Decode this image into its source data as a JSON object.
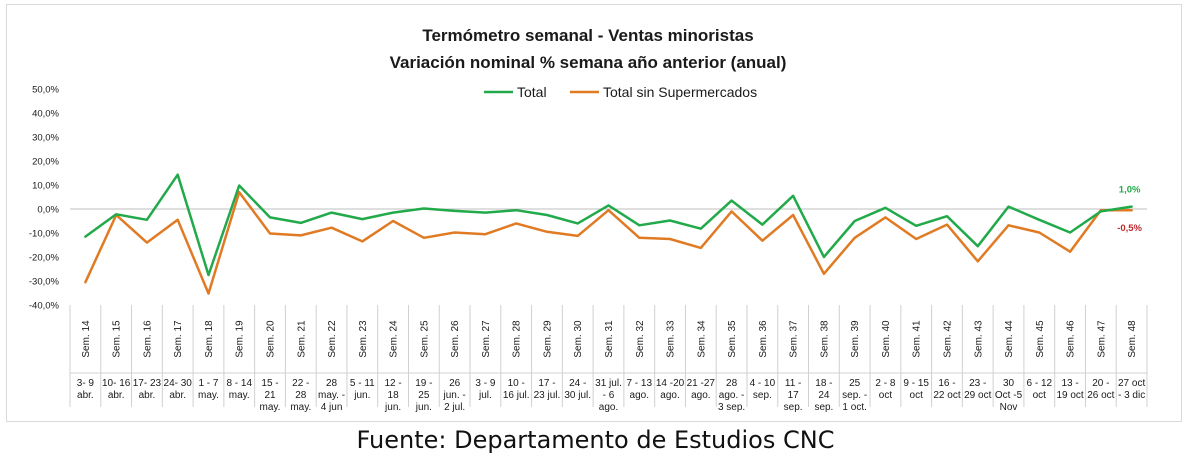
{
  "chart_data": {
    "type": "line",
    "title": "Termómetro semanal - Ventas minoristas",
    "subtitle": "Variación nominal % semana año anterior (anual)",
    "ylim": [
      -40,
      50
    ],
    "yticks": [
      "50,0%",
      "40,0%",
      "30,0%",
      "20,0%",
      "10,0%",
      "0,0%",
      "-10,0%",
      "-20,0%",
      "-30,0%",
      "-40,0%"
    ],
    "ytick_values": [
      50,
      40,
      30,
      20,
      10,
      0,
      -10,
      -20,
      -30,
      -40
    ],
    "legend_position": "top",
    "grid": false,
    "weeks": [
      "Sem. 14",
      "Sem. 15",
      "Sem. 16",
      "Sem. 17",
      "Sem. 18",
      "Sem. 19",
      "Sem. 20",
      "Sem. 21",
      "Sem. 22",
      "Sem. 23",
      "Sem. 24",
      "Sem. 25",
      "Sem. 26",
      "Sem. 27",
      "Sem. 28",
      "Sem. 29",
      "Sem. 30",
      "Sem. 31",
      "Sem. 32",
      "Sem. 33",
      "Sem. 34",
      "Sem. 35",
      "Sem. 36",
      "Sem. 37",
      "Sem. 38",
      "Sem. 39",
      "Sem. 40",
      "Sem. 41",
      "Sem. 42",
      "Sem. 43",
      "Sem. 44",
      "Sem. 45",
      "Sem. 46",
      "Sem. 47",
      "Sem. 48"
    ],
    "dates": [
      [
        "3- 9",
        "abr."
      ],
      [
        "10- 16",
        "abr."
      ],
      [
        "17- 23",
        "abr."
      ],
      [
        "24- 30",
        "abr."
      ],
      [
        "1 - 7",
        "may."
      ],
      [
        "8 - 14",
        "may."
      ],
      [
        "15 -",
        "21",
        "may."
      ],
      [
        "22 -",
        "28",
        "may."
      ],
      [
        "28",
        "may. -",
        "4 jun"
      ],
      [
        "5 - 11",
        "jun."
      ],
      [
        "12 -",
        "18",
        "jun."
      ],
      [
        "19 -",
        "25",
        "jun."
      ],
      [
        "26",
        "jun. -",
        "2 jul."
      ],
      [
        "3 - 9",
        "jul."
      ],
      [
        "10 -",
        "16 jul."
      ],
      [
        "17 -",
        "23 jul."
      ],
      [
        "24 -",
        "30 jul."
      ],
      [
        "31 jul.",
        "- 6",
        "ago."
      ],
      [
        "7 - 13",
        "ago."
      ],
      [
        "14 -20",
        "ago."
      ],
      [
        "21 -27",
        "ago."
      ],
      [
        "28",
        "ago. -",
        "3 sep."
      ],
      [
        "4 - 10",
        "sep."
      ],
      [
        "11 -",
        "17",
        "sep."
      ],
      [
        "18 -",
        "24",
        "sep."
      ],
      [
        "25",
        "sep. -",
        "1 oct."
      ],
      [
        "2 - 8",
        "oct"
      ],
      [
        "9 - 15",
        "oct"
      ],
      [
        "16 -",
        "22 oct"
      ],
      [
        "23 -",
        "29 oct"
      ],
      [
        "30",
        "Oct -5",
        "Nov"
      ],
      [
        "6 - 12",
        "oct"
      ],
      [
        "13 -",
        "19 oct"
      ],
      [
        "20 -",
        "26 oct"
      ],
      [
        "27 oct",
        "- 3 dic"
      ]
    ],
    "series": [
      {
        "name": "Total",
        "color": "#22a94a",
        "values": [
          -11.5,
          -2.2,
          -4.5,
          14.3,
          -27.5,
          9.8,
          -3.5,
          -5.8,
          -1.5,
          -4.2,
          -1.5,
          0.2,
          -0.8,
          -1.5,
          -0.5,
          -2.5,
          -6.0,
          1.5,
          -6.8,
          -4.8,
          -8.2,
          3.5,
          -6.5,
          5.5,
          -20.0,
          -5.0,
          0.5,
          -7.0,
          -3.0,
          -15.5,
          1.0,
          -4.5,
          -9.8,
          -1.0,
          1.0
        ],
        "end_label": "1,0%"
      },
      {
        "name": "Total sin Supermercados",
        "color": "#e07b24",
        "values": [
          -30.5,
          -2.5,
          -14.0,
          -4.5,
          -35.2,
          7.0,
          -10.2,
          -11.0,
          -7.8,
          -13.5,
          -5.0,
          -12.0,
          -9.8,
          -10.5,
          -6.0,
          -9.5,
          -11.2,
          -0.5,
          -12.0,
          -12.5,
          -16.2,
          -1.0,
          -13.2,
          -2.5,
          -27.0,
          -12.0,
          -3.5,
          -12.5,
          -6.5,
          -21.8,
          -6.8,
          -9.8,
          -17.8,
          -0.5,
          -0.5
        ],
        "end_label": "-0,5%"
      }
    ]
  },
  "source_text": "Fuente: Departamento de Estudios CNC",
  "colors": {
    "end_label_negative": "#c0282c",
    "axis": "#bfbfbf",
    "text": "#1a1a1a"
  }
}
